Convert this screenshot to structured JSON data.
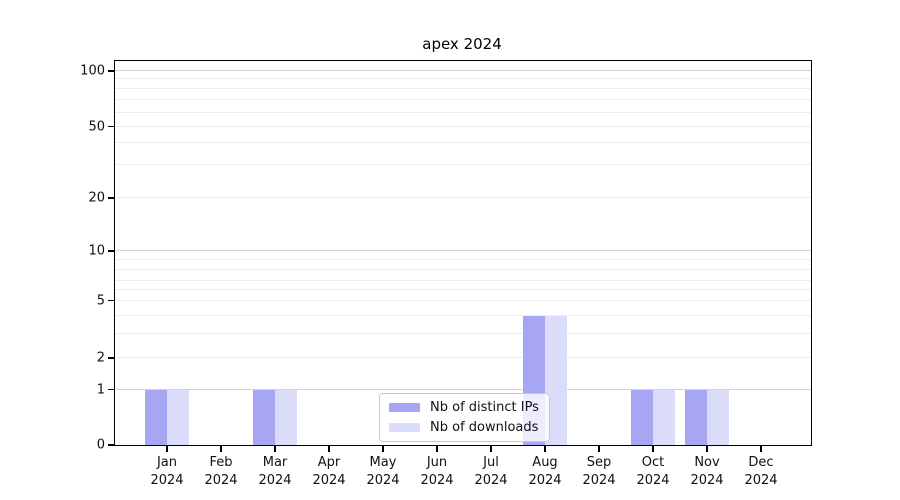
{
  "title": "apex 2024",
  "colors": {
    "distinct_ips": "#a6a6f3",
    "downloads": "#dbdbfa",
    "grid_major": "#d2d2d2",
    "grid_minor": "#ececec",
    "axis": "#000000"
  },
  "legend": {
    "items": [
      {
        "key": "distinct_ips",
        "label": "Nb of distinct IPs"
      },
      {
        "key": "downloads",
        "label": "Nb of downloads"
      }
    ]
  },
  "y_axis": {
    "tick_labels": [
      0,
      1,
      2,
      5,
      10,
      20,
      50,
      100
    ]
  },
  "x_axis": {
    "months": [
      "Jan",
      "Feb",
      "Mar",
      "Apr",
      "May",
      "Jun",
      "Jul",
      "Aug",
      "Sep",
      "Oct",
      "Nov",
      "Dec"
    ],
    "year": "2024"
  },
  "chart_data": {
    "type": "bar",
    "title": "apex 2024",
    "categories": [
      "Jan 2024",
      "Feb 2024",
      "Mar 2024",
      "Apr 2024",
      "May 2024",
      "Jun 2024",
      "Jul 2024",
      "Aug 2024",
      "Sep 2024",
      "Oct 2024",
      "Nov 2024",
      "Dec 2024"
    ],
    "series": [
      {
        "name": "Nb of distinct IPs",
        "color": "#a6a6f3",
        "values": [
          1,
          0,
          1,
          0,
          0,
          0,
          0,
          4,
          0,
          1,
          1,
          0
        ]
      },
      {
        "name": "Nb of downloads",
        "color": "#dbdbfa",
        "values": [
          1,
          0,
          1,
          0,
          0,
          0,
          0,
          4,
          0,
          1,
          1,
          0
        ]
      }
    ],
    "xlabel": "",
    "ylabel": "",
    "yscale": "log",
    "y_tick_labels": [
      0,
      1,
      2,
      5,
      10,
      20,
      50,
      100
    ],
    "ylim": [
      0,
      115
    ],
    "grid": "horizontal, major and minor",
    "legend_position": "lower center inside plot"
  }
}
